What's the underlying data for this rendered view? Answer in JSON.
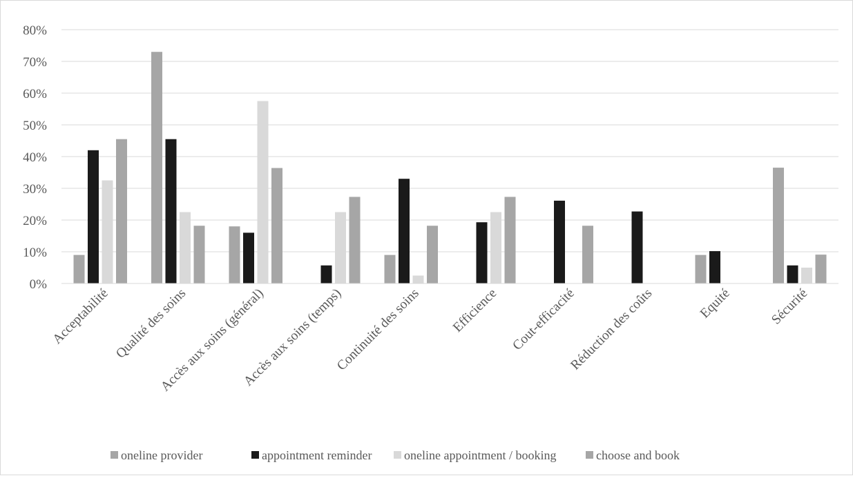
{
  "chart_data": {
    "type": "bar",
    "categories": [
      "Acceptabilité",
      "Qualité des soins",
      "Accès aux soins (général)",
      "Accès aux soins (temps)",
      "Continuité des soins",
      "Efficience",
      "Cout-efficacité",
      "Réduction des coûts",
      "Equité",
      "Sécurité"
    ],
    "series": [
      {
        "name": "oneline provider",
        "color": "#a6a6a6",
        "values": [
          9,
          73,
          18,
          0,
          9,
          0,
          0,
          0,
          9,
          36.5
        ]
      },
      {
        "name": "appointment reminder",
        "color": "#1a1a1a",
        "values": [
          42,
          45.5,
          16,
          5.7,
          33,
          19.3,
          26.1,
          22.7,
          10.2,
          5.7
        ]
      },
      {
        "name": "oneline appointment / booking",
        "color": "#d9d9d9",
        "values": [
          32.5,
          22.5,
          57.5,
          22.5,
          2.5,
          22.5,
          0,
          0,
          0,
          5
        ]
      },
      {
        "name": "choose and book",
        "color": "#a6a6a6",
        "values": [
          45.5,
          18.2,
          36.4,
          27.3,
          18.2,
          27.3,
          18.2,
          0,
          0,
          9.1
        ]
      }
    ],
    "yticks": [
      "0%",
      "10%",
      "20%",
      "30%",
      "40%",
      "50%",
      "60%",
      "70%",
      "80%"
    ],
    "ylim": [
      0,
      80
    ],
    "title": "",
    "xlabel": "",
    "ylabel": "",
    "grid": true,
    "legend_position": "bottom"
  }
}
